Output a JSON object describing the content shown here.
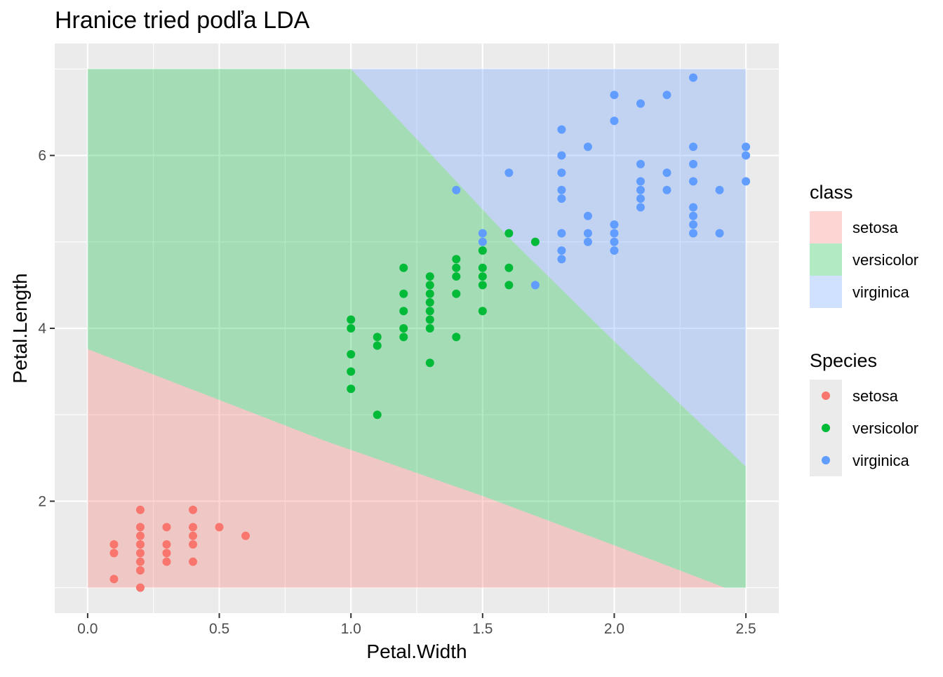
{
  "chart_data": {
    "type": "scatter",
    "title": "Hranice tried podľa LDA",
    "xlabel": "Petal.Width",
    "ylabel": "Petal.Length",
    "xlim": [
      -0.125,
      2.625
    ],
    "ylim": [
      0.705,
      7.295
    ],
    "x_ticks": [
      0.0,
      0.5,
      1.0,
      1.5,
      2.0,
      2.5
    ],
    "x_tick_labels": [
      "0.0",
      "0.5",
      "1.0",
      "1.5",
      "2.0",
      "2.5"
    ],
    "y_ticks": [
      2,
      4,
      6
    ],
    "y_tick_labels": [
      "2",
      "4",
      "6"
    ],
    "grid": true,
    "background_color": "#EBEBEB",
    "boundary_regions": [
      {
        "class": "setosa",
        "color": "#F8766D",
        "opacity": 0.3,
        "polygon": [
          [
            0,
            1.0
          ],
          [
            0,
            3.76
          ],
          [
            0.9,
            2.7
          ],
          [
            1.5,
            2.06
          ],
          [
            2.0,
            1.49
          ],
          [
            2.42,
            1.0
          ]
        ]
      },
      {
        "class": "versicolor",
        "color": "#00BA38",
        "opacity": 0.3,
        "polygon": [
          [
            0,
            3.76
          ],
          [
            0,
            7.0
          ],
          [
            1.0,
            7.0
          ],
          [
            1.6,
            5.05
          ],
          [
            2.0,
            3.85
          ],
          [
            2.5,
            2.4
          ],
          [
            2.5,
            1.0
          ],
          [
            2.42,
            1.0
          ],
          [
            2.0,
            1.49
          ],
          [
            1.5,
            2.06
          ],
          [
            0.9,
            2.7
          ]
        ]
      },
      {
        "class": "virginica",
        "color": "#619CFF",
        "opacity": 0.3,
        "polygon": [
          [
            1.0,
            7.0
          ],
          [
            2.5,
            7.0
          ],
          [
            2.5,
            2.4
          ],
          [
            2.0,
            3.85
          ],
          [
            1.6,
            5.05
          ]
        ]
      }
    ],
    "legends": [
      {
        "title": "class",
        "type": "fill",
        "entries": [
          {
            "label": "setosa",
            "color": "#F8766D"
          },
          {
            "label": "versicolor",
            "color": "#00BA38"
          },
          {
            "label": "virginica",
            "color": "#619CFF"
          }
        ]
      },
      {
        "title": "Species",
        "type": "point",
        "entries": [
          {
            "label": "setosa",
            "color": "#F8766D"
          },
          {
            "label": "versicolor",
            "color": "#00BA38"
          },
          {
            "label": "virginica",
            "color": "#619CFF"
          }
        ]
      }
    ],
    "legend_position": "right",
    "series": [
      {
        "name": "setosa",
        "color": "#F8766D",
        "points": [
          [
            0.1,
            1.1
          ],
          [
            0.1,
            1.4
          ],
          [
            0.1,
            1.5
          ],
          [
            0.2,
            1.0
          ],
          [
            0.2,
            1.2
          ],
          [
            0.2,
            1.3
          ],
          [
            0.2,
            1.4
          ],
          [
            0.2,
            1.5
          ],
          [
            0.2,
            1.6
          ],
          [
            0.2,
            1.7
          ],
          [
            0.2,
            1.9
          ],
          [
            0.3,
            1.3
          ],
          [
            0.3,
            1.4
          ],
          [
            0.3,
            1.5
          ],
          [
            0.3,
            1.7
          ],
          [
            0.4,
            1.3
          ],
          [
            0.4,
            1.5
          ],
          [
            0.4,
            1.6
          ],
          [
            0.4,
            1.7
          ],
          [
            0.4,
            1.9
          ],
          [
            0.5,
            1.7
          ],
          [
            0.6,
            1.6
          ]
        ]
      },
      {
        "name": "versicolor",
        "color": "#00BA38",
        "points": [
          [
            1.0,
            3.3
          ],
          [
            1.0,
            3.5
          ],
          [
            1.0,
            3.7
          ],
          [
            1.0,
            4.0
          ],
          [
            1.0,
            4.1
          ],
          [
            1.1,
            3.0
          ],
          [
            1.1,
            3.8
          ],
          [
            1.1,
            3.9
          ],
          [
            1.2,
            3.9
          ],
          [
            1.2,
            4.0
          ],
          [
            1.2,
            4.2
          ],
          [
            1.2,
            4.4
          ],
          [
            1.2,
            4.7
          ],
          [
            1.3,
            3.6
          ],
          [
            1.3,
            4.0
          ],
          [
            1.3,
            4.1
          ],
          [
            1.3,
            4.2
          ],
          [
            1.3,
            4.3
          ],
          [
            1.3,
            4.4
          ],
          [
            1.3,
            4.5
          ],
          [
            1.3,
            4.6
          ],
          [
            1.4,
            3.9
          ],
          [
            1.4,
            4.4
          ],
          [
            1.4,
            4.6
          ],
          [
            1.4,
            4.7
          ],
          [
            1.4,
            4.8
          ],
          [
            1.5,
            4.2
          ],
          [
            1.5,
            4.5
          ],
          [
            1.5,
            4.6
          ],
          [
            1.5,
            4.7
          ],
          [
            1.5,
            4.9
          ],
          [
            1.6,
            4.5
          ],
          [
            1.6,
            4.7
          ],
          [
            1.6,
            5.1
          ],
          [
            1.7,
            5.0
          ]
        ]
      },
      {
        "name": "virginica",
        "color": "#619CFF",
        "points": [
          [
            1.4,
            5.6
          ],
          [
            1.5,
            5.0
          ],
          [
            1.5,
            5.1
          ],
          [
            1.6,
            5.8
          ],
          [
            1.7,
            4.5
          ],
          [
            1.8,
            4.8
          ],
          [
            1.8,
            4.9
          ],
          [
            1.8,
            5.1
          ],
          [
            1.8,
            5.5
          ],
          [
            1.8,
            5.6
          ],
          [
            1.8,
            5.8
          ],
          [
            1.8,
            6.0
          ],
          [
            1.8,
            6.3
          ],
          [
            1.9,
            5.0
          ],
          [
            1.9,
            5.1
          ],
          [
            1.9,
            5.3
          ],
          [
            1.9,
            6.1
          ],
          [
            2.0,
            4.9
          ],
          [
            2.0,
            5.0
          ],
          [
            2.0,
            5.1
          ],
          [
            2.0,
            5.2
          ],
          [
            2.0,
            6.4
          ],
          [
            2.0,
            6.7
          ],
          [
            2.1,
            5.4
          ],
          [
            2.1,
            5.5
          ],
          [
            2.1,
            5.6
          ],
          [
            2.1,
            5.7
          ],
          [
            2.1,
            5.9
          ],
          [
            2.1,
            6.6
          ],
          [
            2.2,
            5.6
          ],
          [
            2.2,
            5.8
          ],
          [
            2.2,
            6.7
          ],
          [
            2.3,
            5.1
          ],
          [
            2.3,
            5.2
          ],
          [
            2.3,
            5.3
          ],
          [
            2.3,
            5.4
          ],
          [
            2.3,
            5.7
          ],
          [
            2.3,
            5.9
          ],
          [
            2.3,
            6.1
          ],
          [
            2.3,
            6.9
          ],
          [
            2.4,
            5.1
          ],
          [
            2.4,
            5.6
          ],
          [
            2.5,
            5.7
          ],
          [
            2.5,
            6.0
          ],
          [
            2.5,
            6.1
          ]
        ]
      }
    ]
  }
}
